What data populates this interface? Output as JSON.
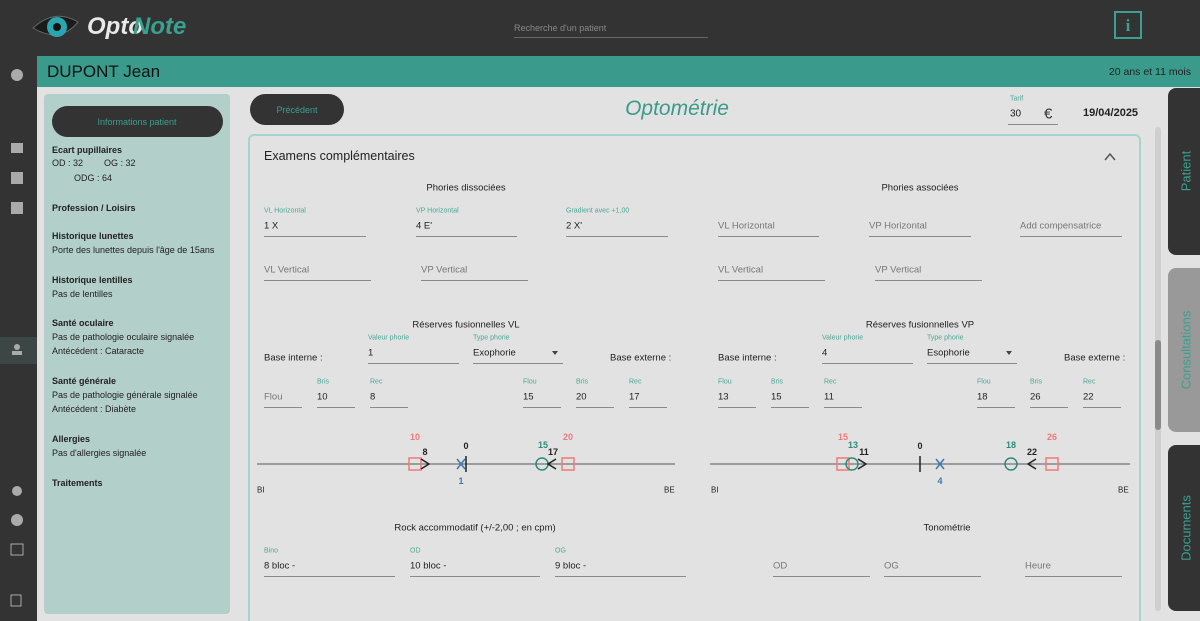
{
  "header": {
    "logo": {
      "part1": "Opto",
      "part2": "Note"
    },
    "search_placeholder": "Recherche d'un patient",
    "info_button": "i"
  },
  "patient_bar": {
    "name": "DUPONT Jean",
    "age": "20 ans et 11 mois"
  },
  "info_panel": {
    "button": "Informations patient",
    "ecart": {
      "title": "Ecart pupillaires",
      "od": "OD : 32",
      "og": "OG : 32",
      "odg": "ODG : 64"
    },
    "sections": [
      {
        "title": "Profession / Loisirs"
      },
      {
        "title": "Historique lunettes",
        "lines": [
          "Porte des lunettes depuis l'âge de 15ans"
        ]
      },
      {
        "title": "Historique lentilles",
        "lines": [
          "Pas de lentilles"
        ]
      },
      {
        "title": "Santé oculaire",
        "lines": [
          "Pas de pathologie oculaire signalée",
          "Antécédent : Cataracte"
        ]
      },
      {
        "title": "Santé générale",
        "lines": [
          "Pas de pathologie générale signalée",
          "Antécédent : Diabète"
        ]
      },
      {
        "title": "Allergies",
        "lines": [
          "Pas d'allergies signalée"
        ]
      },
      {
        "title": "Traitements"
      }
    ]
  },
  "toolbar": {
    "previous": "Précédent",
    "title": "Optométrie",
    "tarif_label": "Tarif",
    "tarif_value": "30",
    "currency": "€",
    "date": "19/04/2025"
  },
  "exams": {
    "title": "Examens complémentaires",
    "phories_dissociees": {
      "title": "Phories dissociées",
      "fields": [
        {
          "label": "VL Horizontal",
          "value": "1 X"
        },
        {
          "label": "VP Horizontal",
          "value": "4 E'"
        },
        {
          "label": "Gradient avec +1,00",
          "value": "2 X'"
        },
        {
          "placeholder": "VL Vertical"
        },
        {
          "placeholder": "VP Vertical"
        }
      ]
    },
    "phories_associees": {
      "title": "Phories associées",
      "fields": [
        {
          "placeholder": "VL Horizontal"
        },
        {
          "placeholder": "VP Horizontal"
        },
        {
          "placeholder": "Add compensatrice"
        },
        {
          "placeholder": "VL Vertical"
        },
        {
          "placeholder": "VP Vertical"
        }
      ]
    },
    "reserves_vl": {
      "title": "Réserves fusionnelles VL",
      "base_interne": "Base interne :",
      "phorie": {
        "label": "Valeur phorie",
        "value": "1"
      },
      "type": {
        "label": "Type phorie",
        "value": "Exophorie"
      },
      "base_externe": "Base externe :",
      "fields": [
        {
          "placeholder": "Flou"
        },
        {
          "label": "Bris",
          "value": "10"
        },
        {
          "label": "Rec",
          "value": "8"
        },
        {
          "label": "Flou",
          "value": "15"
        },
        {
          "label": "Bris",
          "value": "20"
        },
        {
          "label": "Rec",
          "value": "17"
        }
      ],
      "diagram": {
        "start": "BI",
        "end": "BE",
        "labels": [
          10,
          8,
          0,
          1,
          15,
          17,
          20
        ]
      }
    },
    "reserves_vp": {
      "title": "Réserves fusionnelles VP",
      "base_interne": "Base interne :",
      "phorie": {
        "label": "Valeur phorie",
        "value": "4"
      },
      "type": {
        "label": "Type phorie",
        "value": "Esophorie"
      },
      "base_externe": "Base externe :",
      "fields": [
        {
          "label": "Flou",
          "value": "13"
        },
        {
          "label": "Bris",
          "value": "15"
        },
        {
          "label": "Rec",
          "value": "11"
        },
        {
          "label": "Flou",
          "value": "18"
        },
        {
          "label": "Bris",
          "value": "26"
        },
        {
          "label": "Rec",
          "value": "22"
        }
      ],
      "diagram": {
        "start": "BI",
        "end": "BE",
        "labels": [
          15,
          13,
          11,
          0,
          4,
          18,
          22,
          26
        ]
      }
    },
    "rock": {
      "title": "Rock accommodatif (+/-2,00 ; en cpm)",
      "fields": [
        {
          "label": "Bino",
          "value": "8 bloc -"
        },
        {
          "label": "OD",
          "value": "10 bloc -"
        },
        {
          "label": "OG",
          "value": "9 bloc -"
        }
      ]
    },
    "tonometrie": {
      "title": "Tonométrie",
      "fields": [
        {
          "placeholder": "OD"
        },
        {
          "placeholder": "OG"
        },
        {
          "placeholder": "Heure"
        }
      ]
    }
  },
  "tabs": [
    "Patient",
    "Consultations",
    "Documents"
  ]
}
